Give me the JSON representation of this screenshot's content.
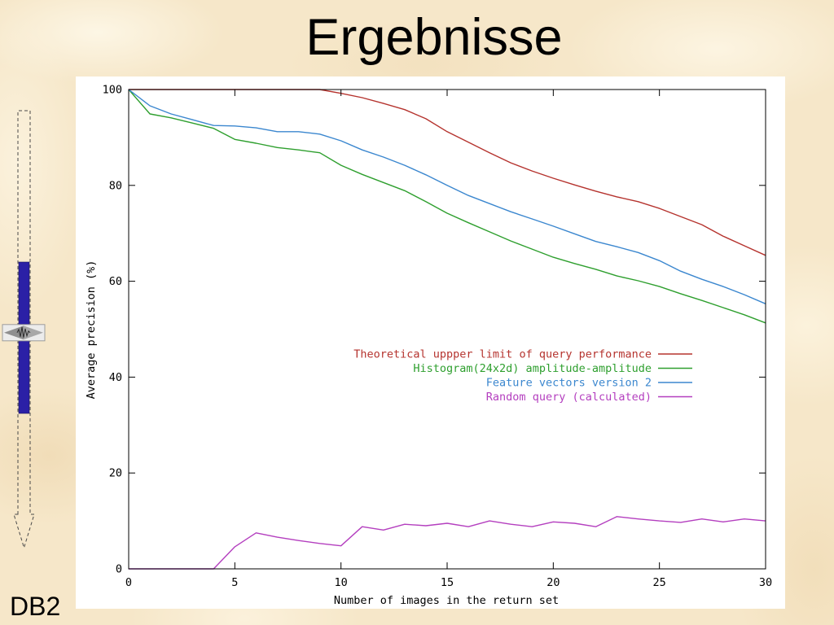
{
  "slide": {
    "title": "Ergebnisse",
    "footer_label": "DB2",
    "background_color": "#f6e7c9"
  },
  "icons": {
    "progress_arrow": "dashed-down-arrow-icon",
    "progress_thumb": "slider-thumb-icon"
  },
  "progress_indicator": {
    "fill_color": "#2b20a6",
    "filled_from": 0.375,
    "filled_to": 0.75,
    "slider_level": 0.55
  },
  "chart_data": {
    "type": "line",
    "xlabel": "Number of images in the return set",
    "ylabel": "Average precision (%)",
    "xlim": [
      0,
      30
    ],
    "ylim": [
      0,
      100
    ],
    "xticks": [
      0,
      5,
      10,
      15,
      20,
      25,
      30
    ],
    "yticks": [
      0,
      20,
      40,
      60,
      80,
      100
    ],
    "grid": false,
    "legend_position": "right",
    "x": [
      0,
      1,
      2,
      3,
      4,
      5,
      6,
      7,
      8,
      9,
      10,
      11,
      12,
      13,
      14,
      15,
      16,
      17,
      18,
      19,
      20,
      21,
      22,
      23,
      24,
      25,
      26,
      27,
      28,
      29,
      30
    ],
    "series": [
      {
        "name": "Theoretical uppper limit of query performance",
        "color": "#b5332e",
        "values": [
          100,
          100,
          100,
          100,
          100,
          100,
          100,
          100,
          100,
          100,
          99.2,
          98.3,
          97.1,
          95.8,
          93.9,
          91.2,
          89.0,
          86.8,
          84.7,
          83.0,
          81.5,
          80.1,
          78.8,
          77.6,
          76.6,
          75.2,
          73.5,
          71.8,
          69.4,
          67.4,
          65.4
        ]
      },
      {
        "name": "Histogram(24x2d) amplitude-amplitude",
        "color": "#2e9f2e",
        "values": [
          100,
          94.9,
          94.1,
          93.0,
          91.9,
          89.6,
          88.8,
          87.9,
          87.4,
          86.8,
          84.2,
          82.3,
          80.6,
          78.9,
          76.6,
          74.2,
          72.2,
          70.3,
          68.4,
          66.7,
          65.0,
          63.7,
          62.5,
          61.1,
          60.1,
          58.9,
          57.4,
          56.0,
          54.5,
          53.0,
          51.3
        ]
      },
      {
        "name": "Feature vectors version 2",
        "color": "#3b87cf",
        "values": [
          100,
          96.6,
          94.9,
          93.7,
          92.5,
          92.4,
          92.0,
          91.2,
          91.2,
          90.7,
          89.3,
          87.4,
          85.9,
          84.2,
          82.2,
          80.0,
          77.9,
          76.2,
          74.5,
          73.0,
          71.5,
          69.9,
          68.3,
          67.2,
          66.0,
          64.3,
          62.1,
          60.4,
          58.9,
          57.2,
          55.3
        ]
      },
      {
        "name": "Random query (calculated)",
        "color": "#b43fbf",
        "values": [
          0,
          0,
          0,
          0,
          0,
          4.6,
          7.5,
          6.6,
          5.9,
          5.3,
          4.8,
          8.8,
          8.1,
          9.3,
          9.0,
          9.5,
          8.8,
          10.0,
          9.3,
          8.8,
          9.8,
          9.5,
          8.8,
          10.9,
          10.4,
          10.0,
          9.7,
          10.4,
          9.8,
          10.4,
          10.0
        ]
      }
    ]
  }
}
